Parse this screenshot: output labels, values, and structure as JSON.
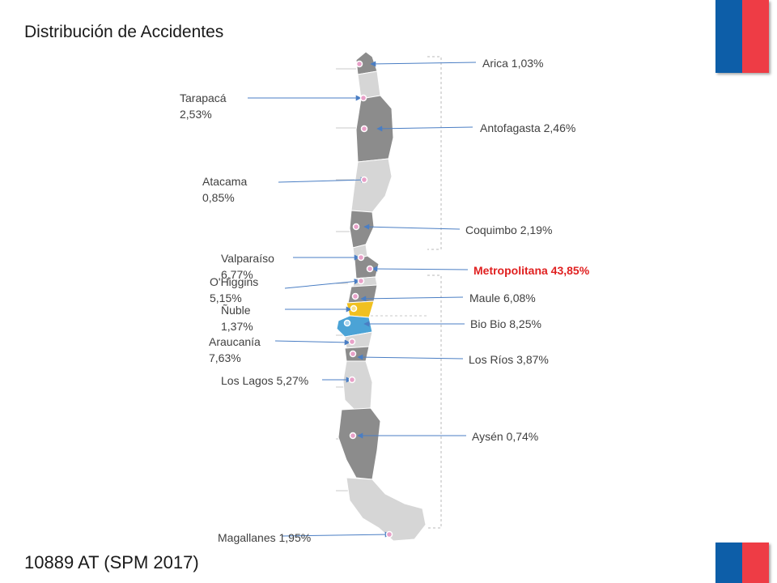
{
  "title": "Distribución de Accidentes",
  "footer": "10889 AT (SPM 2017)",
  "colors": {
    "arrow": "#4a7ec4",
    "highlight": "#e02020",
    "flag_blue": "#0d5ea8",
    "flag_red": "#ee3c45",
    "region_dark": "#8c8c8c",
    "region_light": "#d6d6d6",
    "nuble": "#f0c020",
    "biobio": "#4ba3d6"
  },
  "regions": [
    {
      "id": "arica",
      "text": "Arica 1,03%"
    },
    {
      "id": "tarapaca",
      "text": "Tarapacá\n2,53%"
    },
    {
      "id": "antofagasta",
      "text": "Antofagasta 2,46%"
    },
    {
      "id": "atacama",
      "text": "Atacama\n0,85%"
    },
    {
      "id": "coquimbo",
      "text": "Coquimbo 2,19%"
    },
    {
      "id": "valparaiso",
      "text": "Valparaíso\n6,77%"
    },
    {
      "id": "metropolitana",
      "text": "Metropolitana 43,85%",
      "highlight": true
    },
    {
      "id": "ohiggins",
      "text": "O'Higgins\n5,15%"
    },
    {
      "id": "maule",
      "text": "Maule 6,08%"
    },
    {
      "id": "nuble",
      "text": "Ñuble\n1,37%"
    },
    {
      "id": "biobio",
      "text": "Bio Bio 8,25%"
    },
    {
      "id": "araucania",
      "text": "Araucanía\n7,63%"
    },
    {
      "id": "losrios",
      "text": "Los Ríos 3,87%"
    },
    {
      "id": "loslagos",
      "text": "Los Lagos 5,27%"
    },
    {
      "id": "aysen",
      "text": "Aysén 0,74%"
    },
    {
      "id": "magallanes",
      "text": "Magallanes 1,95%"
    }
  ]
}
